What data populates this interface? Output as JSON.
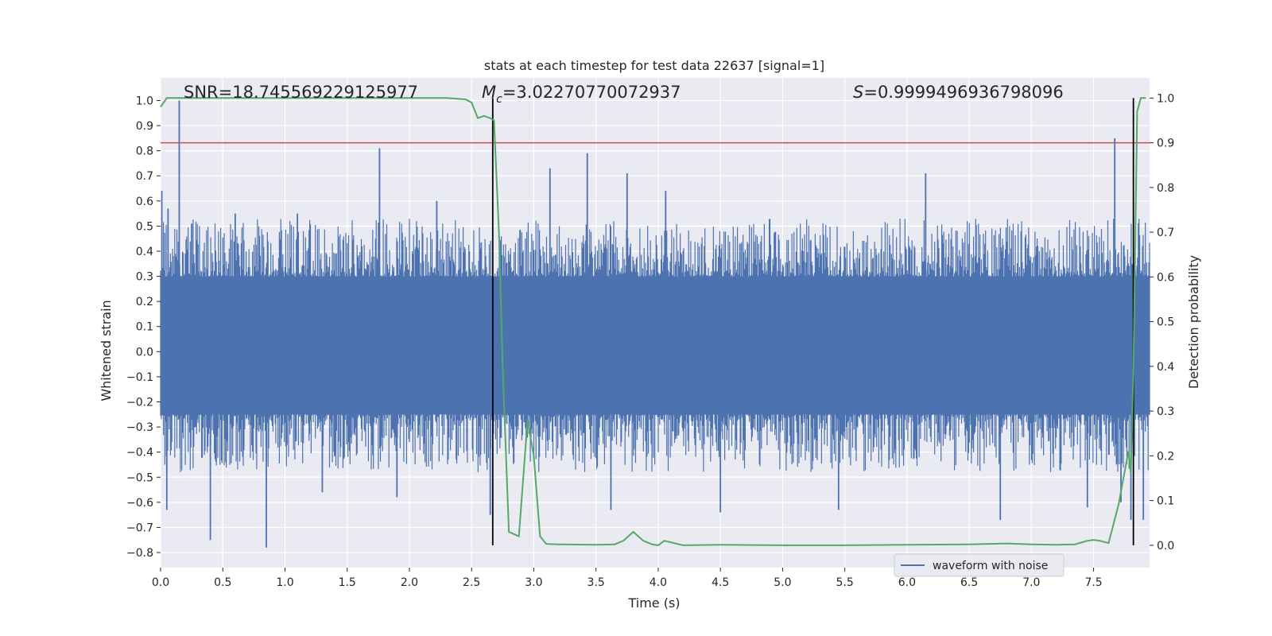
{
  "chart_data": {
    "type": "line",
    "title": "stats at each timestep for test data 22637 [signal=1]",
    "xlabel": "Time (s)",
    "ylabel": "Whitened strain",
    "y2label": "Detection probability",
    "xlim": [
      0.0,
      7.95
    ],
    "ylim": [
      -0.86,
      1.09
    ],
    "y2lim": [
      -0.05,
      1.045
    ],
    "x_ticks": [
      0.0,
      0.5,
      1.0,
      1.5,
      2.0,
      2.5,
      3.0,
      3.5,
      4.0,
      4.5,
      5.0,
      5.5,
      6.0,
      6.5,
      7.0,
      7.5
    ],
    "x_tick_labels": [
      "0.0",
      "0.5",
      "1.0",
      "1.5",
      "2.0",
      "2.5",
      "3.0",
      "3.5",
      "4.0",
      "4.5",
      "5.0",
      "5.5",
      "6.0",
      "6.5",
      "7.0",
      "7.5"
    ],
    "y_ticks": [
      1.0,
      0.9,
      0.8,
      0.7,
      0.6,
      0.5,
      0.4,
      0.3,
      0.2,
      0.1,
      0.0,
      -0.1,
      -0.2,
      -0.3,
      -0.4,
      -0.5,
      -0.6,
      -0.7,
      -0.8
    ],
    "y_tick_labels": [
      "1.0",
      "0.9",
      "0.8",
      "0.7",
      "0.6",
      "0.5",
      "0.4",
      "0.3",
      "0.2",
      "0.1",
      "0.0",
      "−0.1",
      "−0.2",
      "−0.3",
      "−0.4",
      "−0.5",
      "−0.6",
      "−0.7",
      "−0.8"
    ],
    "y2_ticks": [
      1.0,
      0.9,
      0.8,
      0.7,
      0.6,
      0.5,
      0.4,
      0.3,
      0.2,
      0.1,
      0.0
    ],
    "y2_tick_labels": [
      "1.0",
      "0.9",
      "0.8",
      "0.7",
      "0.6",
      "0.5",
      "0.4",
      "0.3",
      "0.2",
      "0.1",
      "0.0"
    ],
    "grid": true,
    "annotations": {
      "snr": "SNR=18.745569229125977",
      "mc_symbol": "M",
      "mc_sub": "c",
      "mc_value": "=3.02270770072937",
      "s_symbol": "S",
      "s_value": "=0.9999496936798096"
    },
    "threshold_line": {
      "axis": "y2",
      "value": 0.9,
      "color": "#c44e52"
    },
    "vertical_lines": [
      {
        "x": 2.67,
        "y2_from": 0.0,
        "y2_to": 1.0,
        "color": "#000000"
      },
      {
        "x": 7.82,
        "y2_from": 0.0,
        "y2_to": 1.0,
        "color": "#000000"
      }
    ],
    "series": [
      {
        "name": "waveform with noise",
        "axis": "y",
        "color": "#4c72b0",
        "style": "noise-band",
        "band": [
          -0.25,
          0.3
        ],
        "spikes": [
          {
            "x": 0.01,
            "y": 0.64
          },
          {
            "x": 0.05,
            "y": -0.63
          },
          {
            "x": 0.06,
            "y": 0.57
          },
          {
            "x": 0.15,
            "y": 1.0
          },
          {
            "x": 0.25,
            "y": 0.51
          },
          {
            "x": 0.4,
            "y": -0.75
          },
          {
            "x": 0.6,
            "y": 0.55
          },
          {
            "x": 0.85,
            "y": -0.78
          },
          {
            "x": 1.1,
            "y": 0.55
          },
          {
            "x": 1.3,
            "y": -0.56
          },
          {
            "x": 1.76,
            "y": 0.81
          },
          {
            "x": 1.9,
            "y": -0.58
          },
          {
            "x": 2.22,
            "y": 0.6
          },
          {
            "x": 2.65,
            "y": -0.65
          },
          {
            "x": 3.13,
            "y": 0.73
          },
          {
            "x": 3.43,
            "y": 0.79
          },
          {
            "x": 3.62,
            "y": -0.63
          },
          {
            "x": 3.75,
            "y": 0.71
          },
          {
            "x": 4.06,
            "y": 0.64
          },
          {
            "x": 4.5,
            "y": -0.64
          },
          {
            "x": 5.45,
            "y": -0.63
          },
          {
            "x": 6.15,
            "y": 0.71
          },
          {
            "x": 6.75,
            "y": -0.67
          },
          {
            "x": 7.45,
            "y": -0.62
          },
          {
            "x": 7.67,
            "y": 0.85
          },
          {
            "x": 7.72,
            "y": -0.6
          },
          {
            "x": 7.8,
            "y": -0.67
          },
          {
            "x": 7.9,
            "y": -0.67
          }
        ]
      },
      {
        "name": "detection probability",
        "axis": "y2",
        "color": "#55a868",
        "x": [
          0.0,
          0.05,
          0.1,
          0.2,
          0.5,
          1.0,
          1.5,
          2.0,
          2.3,
          2.45,
          2.5,
          2.55,
          2.6,
          2.65,
          2.68,
          2.72,
          2.75,
          2.8,
          2.88,
          2.95,
          3.0,
          3.05,
          3.1,
          3.2,
          3.5,
          3.65,
          3.72,
          3.8,
          3.88,
          3.95,
          4.0,
          4.05,
          4.2,
          4.5,
          5.0,
          5.5,
          6.0,
          6.5,
          6.8,
          7.0,
          7.2,
          7.35,
          7.45,
          7.5,
          7.55,
          7.62,
          7.7,
          7.78,
          7.8,
          7.82,
          7.85,
          7.88,
          7.92
        ],
        "values": [
          0.98,
          1.0,
          1.0,
          1.0,
          1.0,
          1.0,
          1.0,
          1.0,
          1.0,
          0.997,
          0.99,
          0.955,
          0.96,
          0.955,
          0.95,
          0.7,
          0.4,
          0.03,
          0.02,
          0.28,
          0.2,
          0.02,
          0.003,
          0.002,
          0.001,
          0.002,
          0.01,
          0.03,
          0.01,
          0.002,
          0.0,
          0.01,
          0.0,
          0.001,
          0.0,
          0.0,
          0.001,
          0.002,
          0.004,
          0.002,
          0.001,
          0.002,
          0.01,
          0.012,
          0.01,
          0.005,
          0.09,
          0.21,
          0.16,
          0.4,
          0.97,
          1.0,
          1.0
        ]
      }
    ],
    "legend": {
      "position": "bottom-right",
      "entries": [
        "waveform with noise"
      ]
    }
  }
}
